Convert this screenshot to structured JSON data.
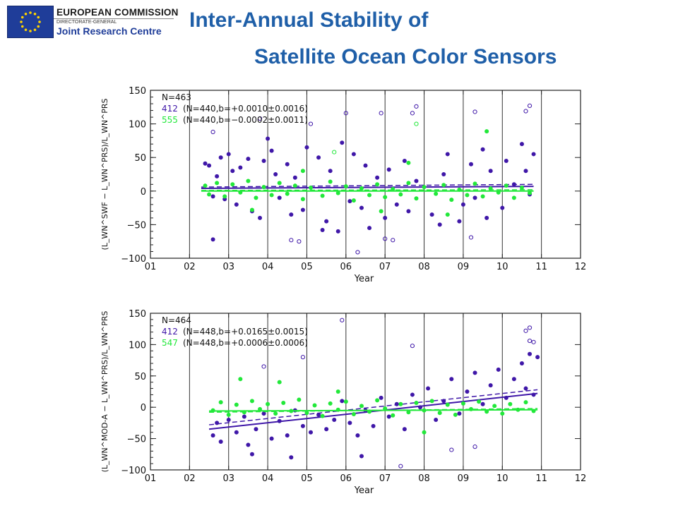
{
  "header": {
    "logo_line1": "EUROPEAN COMMISSION",
    "logo_line2": "DIRECTORATE-GENERAL",
    "logo_line3": "Joint Research Centre",
    "title_line1": "Inter-Annual Stability of",
    "title_line2": "Satellite Ocean Color Sensors"
  },
  "colors": {
    "title": "#1f5fa8",
    "flag": "#1f3d99",
    "band412": "#3f17a8",
    "band_green": "#22e83a"
  },
  "chart_data": [
    {
      "type": "scatter",
      "title": "",
      "xlabel": "Year",
      "ylabel": "(L_WN^SWF − L_WN^PRS)/L_WN^PRS",
      "xlim": [
        1,
        12
      ],
      "ylim": [
        -100,
        150
      ],
      "xticks": [
        "01",
        "02",
        "03",
        "04",
        "05",
        "06",
        "07",
        "08",
        "09",
        "10",
        "11",
        "12"
      ],
      "yticks": [
        "150",
        "100",
        "50",
        "0",
        "−50",
        "−100"
      ],
      "year_dividers": [
        2,
        3,
        4,
        5,
        6,
        7,
        8,
        9,
        10,
        11
      ],
      "grid": false,
      "annotation_n": "N=463",
      "series": [
        {
          "name": "412",
          "stats": "(N=440,b=+0.0010±0.0016)",
          "color": "#3f17a8",
          "trend": {
            "x0": 2.3,
            "x1": 10.8,
            "solid": [
              4,
              7
            ],
            "dashed": [
              6,
              10
            ]
          },
          "points": [
            [
              2.4,
              41
            ],
            [
              2.5,
              38
            ],
            [
              2.6,
              -8
            ],
            [
              2.7,
              22
            ],
            [
              2.8,
              50
            ],
            [
              2.9,
              -12
            ],
            [
              3.0,
              55
            ],
            [
              3.1,
              30
            ],
            [
              3.2,
              -20
            ],
            [
              3.3,
              35
            ],
            [
              3.5,
              48
            ],
            [
              3.6,
              -30
            ],
            [
              3.8,
              -40
            ],
            [
              3.9,
              45
            ],
            [
              4.0,
              78
            ],
            [
              4.1,
              60
            ],
            [
              4.2,
              25
            ],
            [
              4.3,
              -10
            ],
            [
              4.5,
              40
            ],
            [
              4.6,
              -35
            ],
            [
              4.7,
              20
            ],
            [
              4.9,
              -28
            ],
            [
              5.0,
              65
            ],
            [
              5.3,
              50
            ],
            [
              5.5,
              -45
            ],
            [
              5.6,
              30
            ],
            [
              5.8,
              -60
            ],
            [
              5.9,
              72
            ],
            [
              6.1,
              -15
            ],
            [
              6.2,
              55
            ],
            [
              6.4,
              -25
            ],
            [
              6.5,
              38
            ],
            [
              6.6,
              -55
            ],
            [
              6.8,
              20
            ],
            [
              7.0,
              -40
            ],
            [
              7.1,
              32
            ],
            [
              7.3,
              -20
            ],
            [
              7.5,
              45
            ],
            [
              7.6,
              -30
            ],
            [
              7.8,
              15
            ],
            [
              8.2,
              -35
            ],
            [
              8.4,
              -50
            ],
            [
              8.5,
              25
            ],
            [
              8.6,
              55
            ],
            [
              8.9,
              -45
            ],
            [
              9.0,
              -20
            ],
            [
              9.2,
              40
            ],
            [
              9.3,
              -10
            ],
            [
              9.5,
              62
            ],
            [
              9.6,
              -40
            ],
            [
              9.7,
              30
            ],
            [
              10.0,
              -25
            ],
            [
              10.1,
              45
            ],
            [
              10.3,
              10
            ],
            [
              10.5,
              70
            ],
            [
              10.6,
              30
            ],
            [
              10.7,
              -5
            ],
            [
              10.8,
              55
            ],
            [
              2.6,
              -72
            ],
            [
              5.4,
              -58
            ]
          ],
          "outliers": [
            [
              2.6,
              88
            ],
            [
              3.8,
              108
            ],
            [
              4.6,
              -73
            ],
            [
              5.1,
              100
            ],
            [
              6.0,
              116
            ],
            [
              6.3,
              -91
            ],
            [
              6.9,
              116
            ],
            [
              7.0,
              -71
            ],
            [
              7.2,
              -73
            ],
            [
              7.7,
              116
            ],
            [
              7.8,
              126
            ],
            [
              9.3,
              118
            ],
            [
              9.2,
              -69
            ],
            [
              10.6,
              119
            ],
            [
              10.7,
              127
            ],
            [
              4.8,
              -75
            ]
          ]
        },
        {
          "name": "555",
          "stats": "(N=440,b=−0.0002±0.0011)",
          "color": "#22e83a",
          "trend": {
            "x0": 2.3,
            "x1": 10.8,
            "solid": [
              0,
              0
            ],
            "dashed": [
              1,
              2
            ]
          },
          "points": [
            [
              2.4,
              8
            ],
            [
              2.5,
              -5
            ],
            [
              2.7,
              12
            ],
            [
              2.9,
              -8
            ],
            [
              3.1,
              10
            ],
            [
              3.3,
              -2
            ],
            [
              3.5,
              15
            ],
            [
              3.7,
              -10
            ],
            [
              3.9,
              6
            ],
            [
              4.1,
              -6
            ],
            [
              4.3,
              12
            ],
            [
              4.5,
              -4
            ],
            [
              4.7,
              8
            ],
            [
              4.9,
              -12
            ],
            [
              5.1,
              5
            ],
            [
              5.4,
              -7
            ],
            [
              5.6,
              14
            ],
            [
              5.8,
              -3
            ],
            [
              6.0,
              7
            ],
            [
              6.2,
              -14
            ],
            [
              6.4,
              4
            ],
            [
              6.6,
              -6
            ],
            [
              6.8,
              10
            ],
            [
              7.0,
              -9
            ],
            [
              7.2,
              3
            ],
            [
              7.4,
              -5
            ],
            [
              7.6,
              12
            ],
            [
              7.8,
              -11
            ],
            [
              8.0,
              6
            ],
            [
              8.3,
              -4
            ],
            [
              8.5,
              9
            ],
            [
              8.7,
              -13
            ],
            [
              8.9,
              2
            ],
            [
              9.1,
              -6
            ],
            [
              9.3,
              11
            ],
            [
              9.5,
              -8
            ],
            [
              9.7,
              4
            ],
            [
              9.9,
              -2
            ],
            [
              10.1,
              8
            ],
            [
              10.3,
              -10
            ],
            [
              10.5,
              5
            ],
            [
              10.7,
              -3
            ],
            [
              9.6,
              89
            ],
            [
              7.6,
              42
            ],
            [
              4.9,
              30
            ],
            [
              3.6,
              -28
            ],
            [
              6.9,
              -30
            ],
            [
              8.6,
              -35
            ]
          ],
          "outliers": [
            [
              5.7,
              58
            ],
            [
              7.8,
              100
            ]
          ]
        }
      ]
    },
    {
      "type": "scatter",
      "title": "",
      "xlabel": "Year",
      "ylabel": "(L_WN^MOD-A − L_WN^PRS)/L_WN^PRS",
      "xlim": [
        1,
        12
      ],
      "ylim": [
        -100,
        150
      ],
      "xticks": [
        "01",
        "02",
        "03",
        "04",
        "05",
        "06",
        "07",
        "08",
        "09",
        "10",
        "11",
        "12"
      ],
      "yticks": [
        "150",
        "100",
        "50",
        "0",
        "−50",
        "−100"
      ],
      "year_dividers": [
        2,
        3,
        4,
        5,
        6,
        7,
        8,
        9,
        10,
        11
      ],
      "grid": false,
      "annotation_n": "N=464",
      "series": [
        {
          "name": "412",
          "stats": "(N=448,b=+0.0165±0.0015)",
          "color": "#3f17a8",
          "trend": {
            "x0": 2.5,
            "x1": 10.9,
            "solid": [
              -35,
              22
            ],
            "dashed": [
              -28,
              28
            ]
          },
          "points": [
            [
              2.6,
              -45
            ],
            [
              2.7,
              -25
            ],
            [
              2.8,
              -55
            ],
            [
              3.0,
              -20
            ],
            [
              3.2,
              -40
            ],
            [
              3.4,
              -15
            ],
            [
              3.5,
              -60
            ],
            [
              3.7,
              -35
            ],
            [
              3.9,
              -10
            ],
            [
              4.1,
              -50
            ],
            [
              4.3,
              -22
            ],
            [
              4.5,
              -45
            ],
            [
              4.7,
              -5
            ],
            [
              4.9,
              -30
            ],
            [
              5.1,
              -40
            ],
            [
              5.3,
              -12
            ],
            [
              5.5,
              -35
            ],
            [
              5.7,
              -20
            ],
            [
              5.9,
              10
            ],
            [
              6.1,
              -25
            ],
            [
              6.3,
              -45
            ],
            [
              6.5,
              -5
            ],
            [
              6.7,
              -30
            ],
            [
              6.9,
              15
            ],
            [
              7.1,
              -15
            ],
            [
              7.3,
              5
            ],
            [
              7.5,
              -35
            ],
            [
              7.7,
              20
            ],
            [
              7.9,
              0
            ],
            [
              8.1,
              30
            ],
            [
              8.3,
              -20
            ],
            [
              8.5,
              10
            ],
            [
              8.7,
              45
            ],
            [
              8.9,
              -10
            ],
            [
              9.1,
              25
            ],
            [
              9.3,
              55
            ],
            [
              9.5,
              5
            ],
            [
              9.7,
              35
            ],
            [
              9.9,
              60
            ],
            [
              10.1,
              15
            ],
            [
              10.3,
              45
            ],
            [
              10.5,
              70
            ],
            [
              10.6,
              30
            ],
            [
              10.7,
              85
            ],
            [
              10.8,
              20
            ],
            [
              10.9,
              80
            ],
            [
              6.4,
              -78
            ],
            [
              4.6,
              -80
            ],
            [
              3.6,
              -75
            ]
          ],
          "outliers": [
            [
              3.9,
              65
            ],
            [
              4.9,
              80
            ],
            [
              5.9,
              139
            ],
            [
              7.7,
              98
            ],
            [
              7.4,
              -94
            ],
            [
              8.7,
              -68
            ],
            [
              9.3,
              -63
            ],
            [
              10.6,
              122
            ],
            [
              10.7,
              127
            ],
            [
              10.7,
              106
            ],
            [
              10.8,
              104
            ]
          ]
        },
        {
          "name": "547",
          "stats": "(N=448,b=+0.0006±0.0006)",
          "color": "#22e83a",
          "trend": {
            "x0": 2.5,
            "x1": 10.9,
            "solid": [
              -6,
              -4
            ],
            "dashed": [
              -8,
              -2
            ]
          },
          "points": [
            [
              2.6,
              -5
            ],
            [
              2.8,
              8
            ],
            [
              3.0,
              -12
            ],
            [
              3.2,
              4
            ],
            [
              3.4,
              -8
            ],
            [
              3.6,
              10
            ],
            [
              3.8,
              -3
            ],
            [
              4.0,
              5
            ],
            [
              4.2,
              -10
            ],
            [
              4.4,
              7
            ],
            [
              4.6,
              -6
            ],
            [
              4.8,
              12
            ],
            [
              5.0,
              -9
            ],
            [
              5.2,
              3
            ],
            [
              5.4,
              -14
            ],
            [
              5.6,
              6
            ],
            [
              5.8,
              -4
            ],
            [
              6.0,
              9
            ],
            [
              6.2,
              -11
            ],
            [
              6.4,
              2
            ],
            [
              6.6,
              -7
            ],
            [
              6.8,
              11
            ],
            [
              7.0,
              -2
            ],
            [
              7.2,
              -13
            ],
            [
              7.4,
              5
            ],
            [
              7.6,
              -8
            ],
            [
              7.8,
              7
            ],
            [
              8.0,
              -5
            ],
            [
              8.2,
              10
            ],
            [
              8.4,
              -9
            ],
            [
              8.6,
              4
            ],
            [
              8.8,
              -12
            ],
            [
              9.0,
              6
            ],
            [
              9.2,
              -3
            ],
            [
              9.4,
              9
            ],
            [
              9.6,
              -7
            ],
            [
              9.8,
              2
            ],
            [
              10.0,
              -10
            ],
            [
              10.2,
              5
            ],
            [
              10.4,
              -4
            ],
            [
              10.6,
              8
            ],
            [
              10.8,
              -6
            ],
            [
              3.3,
              45
            ],
            [
              4.3,
              40
            ],
            [
              5.8,
              25
            ],
            [
              8.0,
              -40
            ]
          ],
          "outliers": []
        }
      ]
    }
  ]
}
